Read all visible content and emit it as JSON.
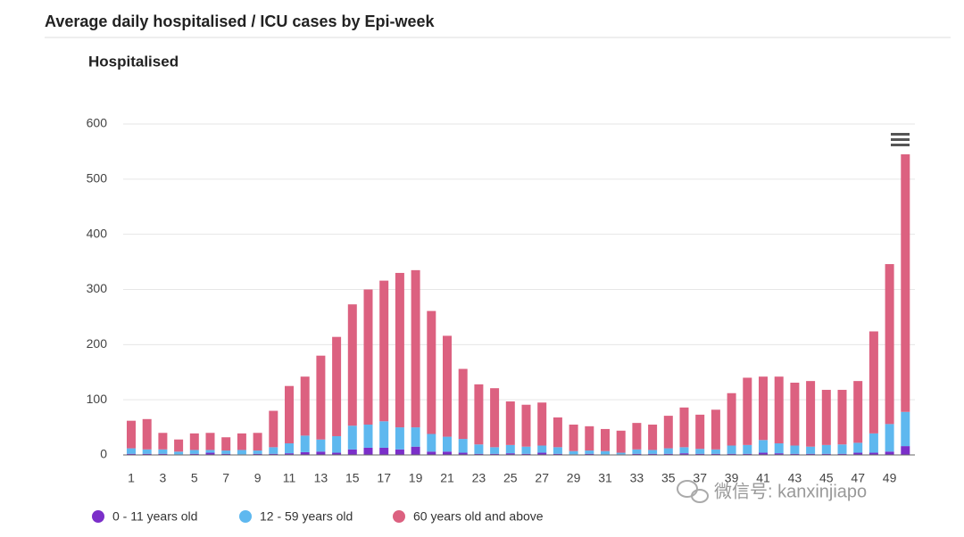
{
  "chart_data": {
    "type": "stacked_bar",
    "header": "Average daily hospitalised / ICU cases by Epi-week",
    "title": "Hospitalised",
    "categories": [
      "1",
      null,
      "3",
      null,
      "5",
      null,
      "7",
      null,
      "9",
      null,
      "11",
      null,
      "13",
      null,
      "15",
      null,
      "17",
      null,
      "19",
      null,
      "21",
      null,
      "23",
      null,
      "25",
      null,
      "27",
      null,
      "29",
      null,
      "31",
      null,
      "33",
      null,
      "35",
      null,
      "37",
      null,
      "39",
      null,
      "41",
      null,
      "43",
      null,
      "45",
      null,
      "47",
      null,
      "49",
      null
    ],
    "series": [
      {
        "name": "0 - 11 years old",
        "color": "#7b2fc9",
        "values": [
          2,
          2,
          2,
          1,
          2,
          4,
          2,
          1,
          2,
          2,
          3,
          5,
          6,
          4,
          10,
          13,
          13,
          10,
          15,
          6,
          6,
          4,
          2,
          2,
          3,
          2,
          4,
          2,
          1,
          2,
          1,
          1,
          2,
          2,
          2,
          3,
          2,
          2,
          2,
          2,
          4,
          3,
          2,
          2,
          2,
          2,
          4,
          4,
          6,
          16
        ]
      },
      {
        "name": "12 - 59 years old",
        "color": "#5eb8ef",
        "values": [
          10,
          8,
          8,
          5,
          7,
          5,
          6,
          8,
          6,
          12,
          18,
          30,
          22,
          30,
          43,
          42,
          48,
          40,
          35,
          32,
          27,
          25,
          17,
          12,
          15,
          13,
          13,
          12,
          6,
          6,
          6,
          3,
          8,
          7,
          10,
          11,
          9,
          8,
          15,
          16,
          23,
          18,
          15,
          13,
          16,
          17,
          18,
          35,
          50,
          62
        ]
      },
      {
        "name": "60 years old and above",
        "color": "#dc6180",
        "values": [
          50,
          55,
          30,
          22,
          30,
          31,
          24,
          30,
          32,
          66,
          104,
          107,
          152,
          180,
          220,
          245,
          255,
          280,
          285,
          223,
          183,
          127,
          109,
          107,
          79,
          76,
          78,
          54,
          48,
          44,
          40,
          40,
          48,
          46,
          59,
          72,
          62,
          72,
          95,
          122,
          115,
          121,
          114,
          119,
          100,
          99,
          112,
          185,
          290,
          467
        ]
      }
    ],
    "ylim": [
      0,
      600
    ],
    "yticks": [
      0,
      100,
      200,
      300,
      400,
      500,
      600
    ],
    "grid": true,
    "legend": "bottom-left",
    "watermark": "微信号: kanxinjiapo"
  }
}
